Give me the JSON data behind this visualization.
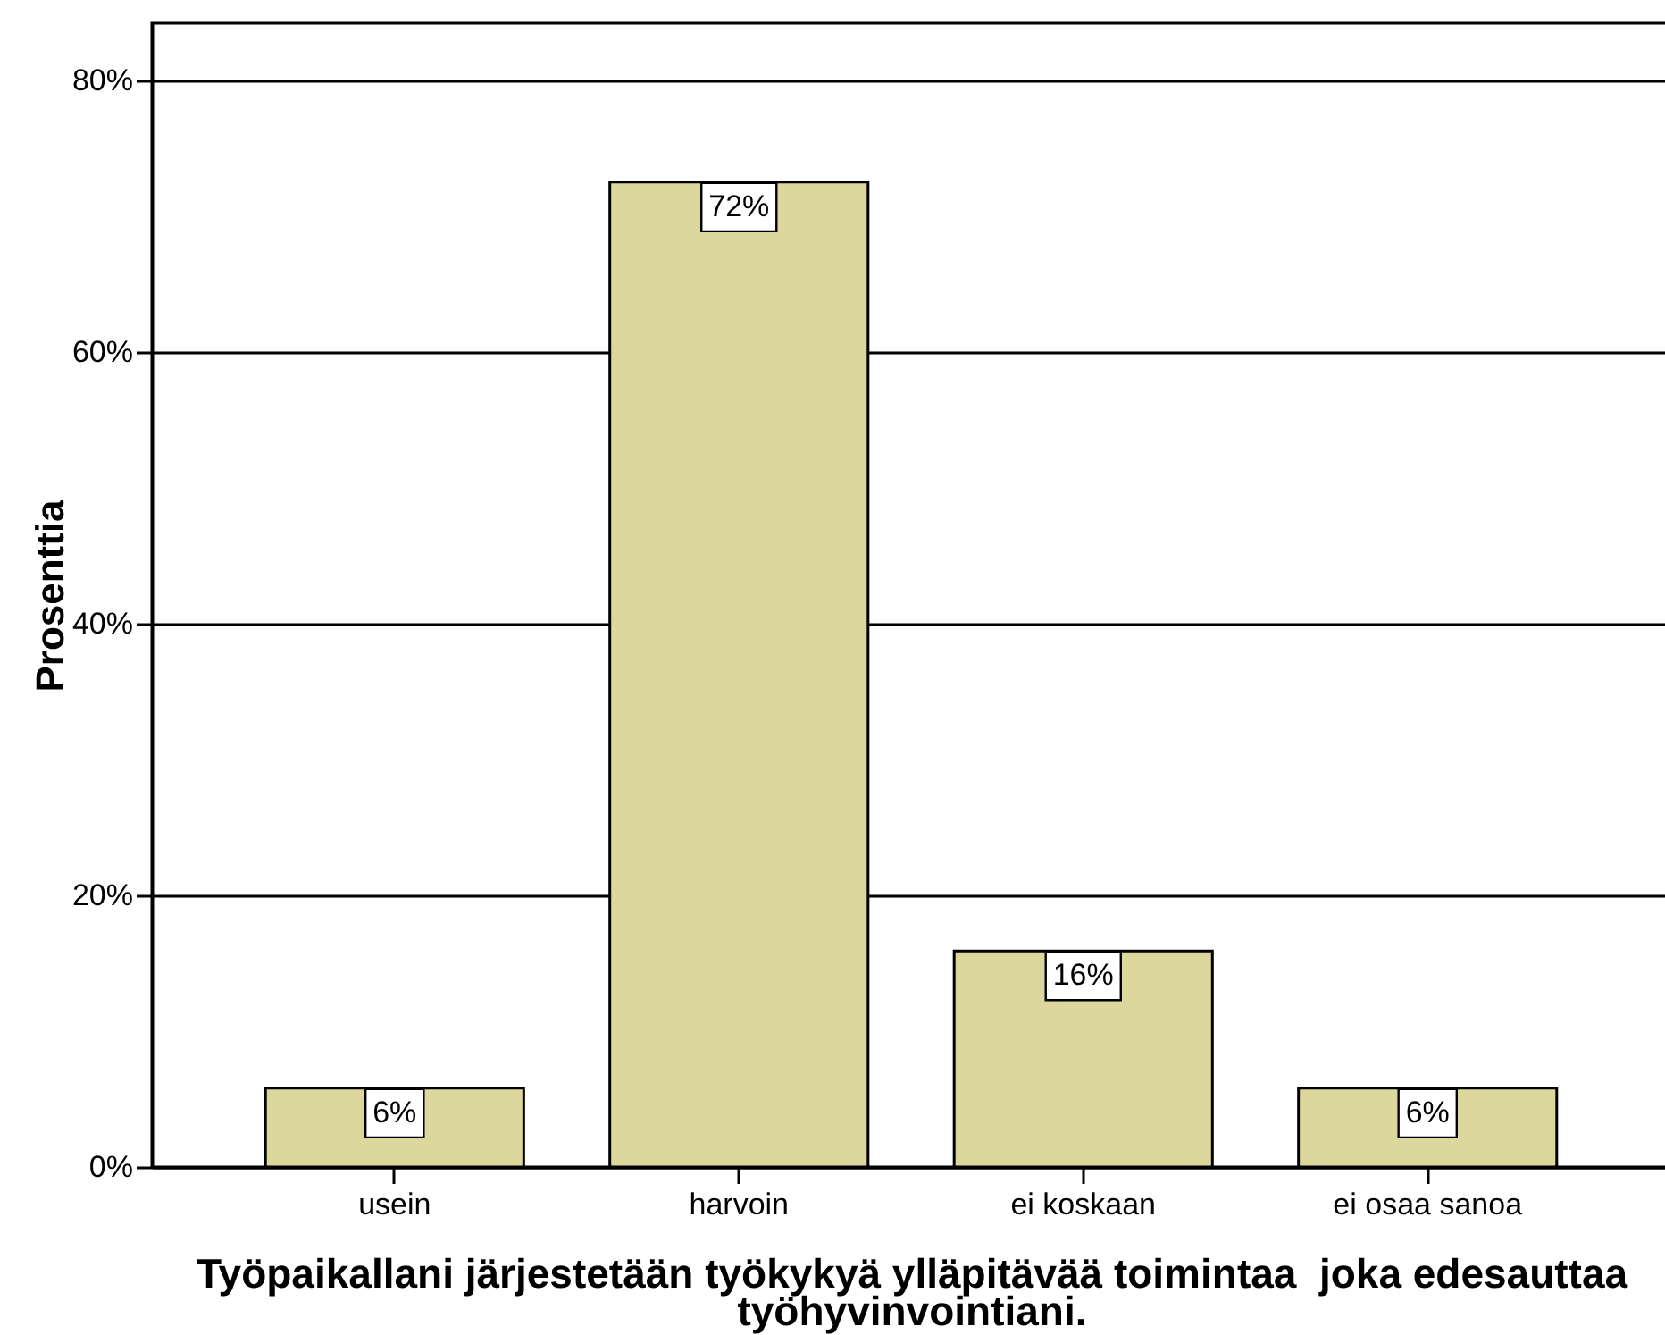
{
  "chart_data": {
    "type": "bar",
    "categories": [
      "usein",
      "harvoin",
      "ei koskaan",
      "ei osaa sanoa"
    ],
    "values": [
      5.8,
      72.5,
      15.9,
      5.8
    ],
    "value_labels": [
      "6%",
      "72%",
      "16%",
      "6%"
    ],
    "color": "#dcd79c",
    "xlabel": "Työpaikallani järjestetään työkykyä ylläpitävää toimintaa  joka edesauttaa työhyvinvointiani.",
    "ylabel": "Prosenttia",
    "ylim": [
      0,
      84.2
    ],
    "yticks": [
      {
        "value": 0,
        "label": "0%"
      },
      {
        "value": 20,
        "label": "20%"
      },
      {
        "value": 40,
        "label": "40%"
      },
      {
        "value": 60,
        "label": "60%"
      },
      {
        "value": 80,
        "label": "80%"
      }
    ],
    "grid": "y"
  }
}
